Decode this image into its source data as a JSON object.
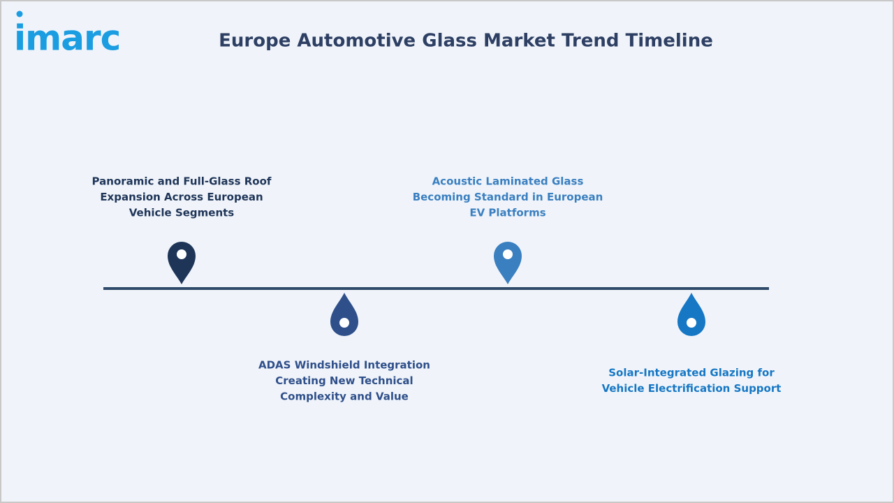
{
  "logo": "imarc",
  "title": "Europe Automotive Glass Market Trend Timeline",
  "items": [
    {
      "lines": [
        "Panoramic and Full-Glass Roof",
        "Expansion Across European",
        "Vehicle Segments"
      ]
    },
    {
      "lines": [
        "ADAS Windshield Integration",
        "Creating New Technical",
        "Complexity and Value"
      ]
    },
    {
      "lines": [
        "Acoustic Laminated Glass",
        "Becoming Standard in European",
        "EV Platforms"
      ]
    },
    {
      "lines": [
        "Solar-Integrated Glazing for",
        "Vehicle Electrification Support"
      ]
    }
  ]
}
